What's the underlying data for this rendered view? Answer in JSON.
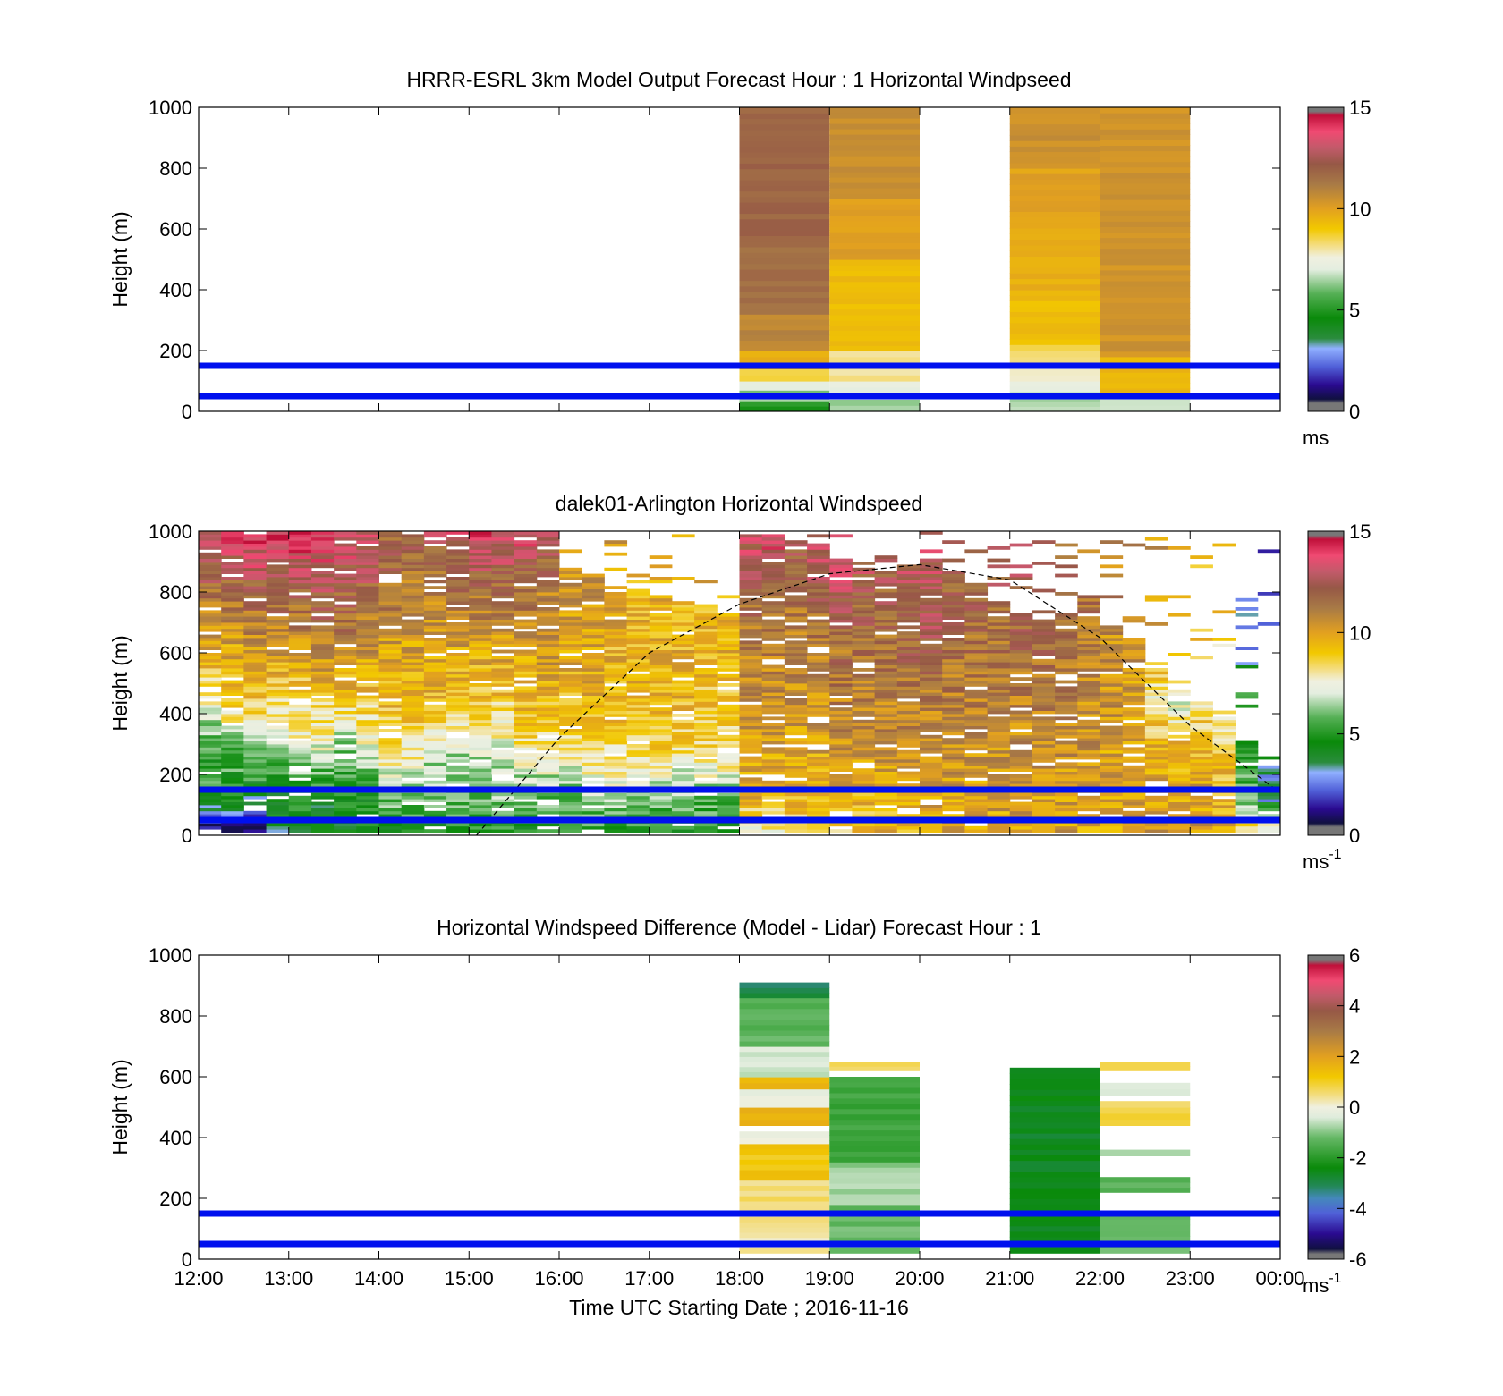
{
  "chart_data": [
    {
      "type": "heatmap",
      "title": "HRRR-ESRL 3km Model Output   Forecast Hour : 1 Horizontal Windpseed",
      "ylabel": "Height (m)",
      "xlim": [
        "12:00",
        "00:00"
      ],
      "ylim": [
        0,
        1000
      ],
      "yticks": [
        "0",
        "200",
        "400",
        "600",
        "800",
        "1000"
      ],
      "colorbar": {
        "label": "ms",
        "label_sup": "",
        "ticks": [
          "0",
          "5",
          "10",
          "15"
        ],
        "range": [
          0,
          15
        ]
      },
      "blue_lines": [
        50,
        150
      ],
      "columns": [
        {
          "start": "18:00",
          "end": "19:00",
          "bins": [
            [
              0,
              35,
              5
            ],
            [
              35,
              70,
              6.3
            ],
            [
              70,
              100,
              7.3
            ],
            [
              100,
              140,
              8.5
            ],
            [
              140,
              200,
              9.6
            ],
            [
              200,
              320,
              10.8
            ],
            [
              320,
              560,
              11.5
            ],
            [
              560,
              1000,
              11.8
            ]
          ]
        },
        {
          "start": "19:00",
          "end": "20:00",
          "bins": [
            [
              0,
              40,
              6.5
            ],
            [
              40,
              100,
              7.2
            ],
            [
              100,
              160,
              8
            ],
            [
              160,
              200,
              8.2
            ],
            [
              200,
              300,
              9.4
            ],
            [
              300,
              500,
              9.3
            ],
            [
              500,
              700,
              10
            ],
            [
              700,
              1000,
              10.6
            ]
          ]
        },
        {
          "start": "21:00",
          "end": "22:00",
          "bins": [
            [
              0,
              50,
              6.5
            ],
            [
              50,
              100,
              7
            ],
            [
              100,
              160,
              7.8
            ],
            [
              160,
              220,
              8.4
            ],
            [
              220,
              400,
              9.3
            ],
            [
              400,
              640,
              9.6
            ],
            [
              640,
              800,
              10
            ],
            [
              800,
              1000,
              10.5
            ]
          ]
        },
        {
          "start": "22:00",
          "end": "23:00",
          "bins": [
            [
              0,
              60,
              7
            ],
            [
              60,
              180,
              9.4
            ],
            [
              180,
              1000,
              10.4
            ]
          ]
        }
      ]
    },
    {
      "type": "heatmap",
      "title": "dalek01-Arlington  Horizontal Windspeed",
      "ylabel": "Height (m)",
      "xlim": [
        "12:00",
        "00:00"
      ],
      "ylim": [
        0,
        1000
      ],
      "yticks": [
        "0",
        "200",
        "400",
        "600",
        "800",
        "1000"
      ],
      "colorbar": {
        "label": "ms",
        "label_sup": "-1",
        "ticks": [
          "0",
          "5",
          "10",
          "15"
        ],
        "range": [
          0,
          15
        ]
      },
      "blue_lines": [
        50,
        150
      ],
      "dashed_curve": [
        [
          "15:05",
          0
        ],
        [
          "16:00",
          320
        ],
        [
          "17:00",
          600
        ],
        [
          "18:00",
          760
        ],
        [
          "19:00",
          860
        ],
        [
          "20:00",
          890
        ],
        [
          "21:00",
          840
        ],
        [
          "22:00",
          650
        ],
        [
          "23:00",
          360
        ],
        [
          "00:00",
          140
        ]
      ],
      "profile_interval_min": 15,
      "profiles": [
        {
          "t": "12:00",
          "top": 1000,
          "spd": [
            1,
            5,
            5.5,
            8,
            10,
            11.5,
            13.5
          ]
        },
        {
          "t": "12:15",
          "top": 1000,
          "spd": [
            1,
            4.5,
            6,
            9,
            10,
            11.5,
            13.5
          ]
        },
        {
          "t": "12:30",
          "top": 1000,
          "spd": [
            1,
            4,
            6.5,
            9,
            10.5,
            12,
            14
          ]
        },
        {
          "t": "12:45",
          "top": 1000,
          "spd": [
            4,
            4.5,
            6.5,
            8.5,
            10.5,
            12,
            14
          ]
        },
        {
          "t": "13:00",
          "top": 1000,
          "spd": [
            4,
            5,
            7,
            8.5,
            10.5,
            12,
            14
          ]
        },
        {
          "t": "13:15",
          "top": 1000,
          "spd": [
            4,
            4.5,
            7,
            9,
            11,
            12.5,
            14
          ]
        },
        {
          "t": "13:30",
          "top": 1000,
          "spd": [
            4,
            5,
            6,
            9,
            11,
            12,
            13.5
          ]
        },
        {
          "t": "13:45",
          "top": 1000,
          "spd": [
            5,
            5,
            7,
            9,
            10.5,
            12,
            13
          ]
        },
        {
          "t": "14:00",
          "top": 1000,
          "spd": [
            5,
            6,
            8,
            9.5,
            10,
            11.5,
            12
          ]
        },
        {
          "t": "14:15",
          "top": 1000,
          "spd": [
            5,
            6,
            8,
            9.5,
            10,
            11,
            12
          ]
        },
        {
          "t": "14:30",
          "top": 1000,
          "spd": [
            5,
            6,
            7,
            9.5,
            10,
            11,
            12.5
          ]
        },
        {
          "t": "14:45",
          "top": 1000,
          "spd": [
            5,
            6,
            7,
            9,
            10,
            11.5,
            13
          ]
        },
        {
          "t": "15:00",
          "top": 1000,
          "spd": [
            5,
            6,
            7,
            9,
            10,
            11.5,
            14
          ]
        },
        {
          "t": "15:15",
          "top": 1000,
          "spd": [
            5,
            6,
            7,
            9,
            10,
            11.5,
            13.5
          ]
        },
        {
          "t": "15:30",
          "top": 1000,
          "spd": [
            5,
            6,
            8,
            9.5,
            10,
            11.5,
            13.5
          ]
        },
        {
          "t": "15:45",
          "top": 1000,
          "spd": [
            5,
            6,
            8,
            9.5,
            10.5,
            11,
            12.5
          ]
        },
        {
          "t": "16:00",
          "top": 870,
          "spd": [
            5,
            6,
            8,
            9.5,
            10,
            10.5,
            11
          ]
        },
        {
          "t": "16:15",
          "top": 850,
          "spd": [
            5,
            6.5,
            8.5,
            9.5,
            10,
            10.5,
            11
          ]
        },
        {
          "t": "16:30",
          "top": 820,
          "spd": [
            5,
            6.5,
            8.5,
            9.5,
            9.5,
            10,
            10.5
          ]
        },
        {
          "t": "16:45",
          "top": 800,
          "spd": [
            5,
            6.5,
            8.5,
            9.5,
            9.5,
            9.5,
            10
          ]
        },
        {
          "t": "17:00",
          "top": 780,
          "spd": [
            5,
            6.5,
            8.5,
            9.5,
            9.5,
            9.5,
            10
          ]
        },
        {
          "t": "17:15",
          "top": 760,
          "spd": [
            5,
            6,
            8.5,
            9.5,
            9.5,
            9,
            10
          ]
        },
        {
          "t": "17:30",
          "top": 740,
          "spd": [
            5,
            6,
            8.5,
            9,
            9.5,
            9.5,
            10
          ]
        },
        {
          "t": "17:45",
          "top": 720,
          "spd": [
            5,
            6,
            8.5,
            9,
            9.5,
            9.5,
            9.5
          ]
        },
        {
          "t": "18:00",
          "top": 1000,
          "spd": [
            8,
            9.5,
            10,
            10.5,
            11,
            12,
            13
          ]
        },
        {
          "t": "18:15",
          "top": 1000,
          "spd": [
            8,
            9.5,
            10,
            10.5,
            11,
            12,
            13.5
          ]
        },
        {
          "t": "18:30",
          "top": 960,
          "spd": [
            8.5,
            9.5,
            10,
            10.5,
            11,
            11.5,
            12.5
          ]
        },
        {
          "t": "18:45",
          "top": 950,
          "spd": [
            8.5,
            9,
            10,
            10.5,
            11,
            12,
            13
          ]
        },
        {
          "t": "19:00",
          "top": 900,
          "spd": [
            9,
            9.5,
            10.5,
            11,
            11.5,
            12.5,
            13.5
          ]
        },
        {
          "t": "19:15",
          "top": 880,
          "spd": [
            9,
            9.5,
            10.5,
            11,
            11.5,
            12,
            13
          ]
        },
        {
          "t": "19:30",
          "top": 860,
          "spd": [
            9.5,
            9.5,
            10.5,
            11,
            11.5,
            12,
            12.5
          ]
        },
        {
          "t": "19:45",
          "top": 880,
          "spd": [
            9.5,
            9.5,
            10.5,
            11,
            12,
            12.5,
            13
          ]
        },
        {
          "t": "20:00",
          "top": 900,
          "spd": [
            9.5,
            10,
            10.5,
            11,
            12,
            12.5,
            13
          ]
        },
        {
          "t": "20:15",
          "top": 860,
          "spd": [
            10,
            10,
            10.5,
            11,
            11.5,
            12,
            12.5
          ]
        },
        {
          "t": "20:30",
          "top": 820,
          "spd": [
            10,
            10,
            10.5,
            11,
            11.5,
            12,
            12
          ]
        },
        {
          "t": "20:45",
          "top": 760,
          "spd": [
            10,
            10,
            10.5,
            11,
            11.5,
            12,
            12.5
          ]
        },
        {
          "t": "21:00",
          "top": 720,
          "spd": [
            10,
            10,
            10.5,
            11,
            11.5,
            12.5,
            13
          ]
        },
        {
          "t": "21:15",
          "top": 700,
          "spd": [
            10,
            10,
            10.5,
            11,
            11.5,
            12,
            12.5
          ]
        },
        {
          "t": "21:30",
          "top": 720,
          "spd": [
            10,
            10,
            10.5,
            11,
            11.5,
            12,
            12
          ]
        },
        {
          "t": "21:45",
          "top": 780,
          "spd": [
            10,
            10,
            10.5,
            10.5,
            11,
            11.5,
            11
          ]
        },
        {
          "t": "22:00",
          "top": 680,
          "spd": [
            10,
            10,
            10,
            10.5,
            10.5,
            11,
            11
          ]
        },
        {
          "t": "22:15",
          "top": 640,
          "spd": [
            10,
            10,
            10,
            10,
            10.5,
            10.5,
            10.5
          ]
        },
        {
          "t": "22:30",
          "top": 560,
          "spd": [
            10,
            10,
            9.5,
            8,
            10,
            10.5,
            10
          ]
        },
        {
          "t": "22:45",
          "top": 480,
          "spd": [
            10,
            10,
            9.5,
            7,
            9,
            10,
            9.5
          ]
        },
        {
          "t": "23:00",
          "top": 420,
          "spd": [
            10,
            10,
            9.5,
            8,
            9,
            9.5,
            9
          ]
        },
        {
          "t": "23:15",
          "top": 380,
          "spd": [
            9.5,
            9.5,
            9,
            7.5,
            8.5,
            9,
            9
          ]
        },
        {
          "t": "23:30",
          "top": 300,
          "spd": [
            8.5,
            6,
            5,
            5,
            3,
            2,
            1
          ]
        },
        {
          "t": "23:45",
          "top": 240,
          "spd": [
            8,
            3,
            4,
            3.5,
            3,
            2,
            1
          ]
        }
      ]
    },
    {
      "type": "heatmap",
      "title": "Horizontal Windspeed Difference (Model - Lidar) Forecast Hour : 1",
      "ylabel": "Height (m)",
      "xlabel": "Time UTC  Starting Date ; 2016-11-16",
      "xticks": [
        "12:00",
        "13:00",
        "14:00",
        "15:00",
        "16:00",
        "17:00",
        "18:00",
        "19:00",
        "20:00",
        "21:00",
        "22:00",
        "23:00",
        "00:00"
      ],
      "xlim": [
        "12:00",
        "00:00"
      ],
      "ylim": [
        0,
        1000
      ],
      "yticks": [
        "0",
        "200",
        "400",
        "600",
        "800",
        "1000"
      ],
      "colorbar": {
        "label": "ms",
        "label_sup": "-1",
        "ticks": [
          "-6",
          "-4",
          "-2",
          "0",
          "2",
          "4",
          "6"
        ],
        "range": [
          -6,
          6
        ]
      },
      "blue_lines": [
        50,
        150
      ],
      "columns": [
        {
          "start": "18:00",
          "end": "19:00",
          "bins": [
            [
              20,
              140,
              0.3
            ],
            [
              140,
              260,
              0.5
            ],
            [
              260,
              380,
              1.2
            ],
            [
              380,
              420,
              -0.1
            ],
            [
              440,
              500,
              1.8
            ],
            [
              500,
              560,
              -0.3
            ],
            [
              560,
              600,
              1.5
            ],
            [
              600,
              700,
              -0.5
            ],
            [
              700,
              860,
              -1.3
            ],
            [
              860,
              910,
              -3
            ]
          ]
        },
        {
          "start": "19:00",
          "end": "20:00",
          "bins": [
            [
              20,
              180,
              -1.2
            ],
            [
              180,
              320,
              -0.8
            ],
            [
              320,
              600,
              -1.7
            ],
            [
              620,
              650,
              0.8
            ]
          ]
        },
        {
          "start": "21:00",
          "end": "22:00",
          "bins": [
            [
              20,
              630,
              -2.6
            ]
          ]
        },
        {
          "start": "22:00",
          "end": "23:00",
          "bins": [
            [
              20,
              150,
              -1.3
            ],
            [
              220,
              270,
              -1.3
            ],
            [
              340,
              360,
              -0.8
            ],
            [
              440,
              520,
              0.7
            ],
            [
              540,
              580,
              -0.5
            ],
            [
              620,
              650,
              0.6
            ]
          ]
        }
      ]
    }
  ]
}
